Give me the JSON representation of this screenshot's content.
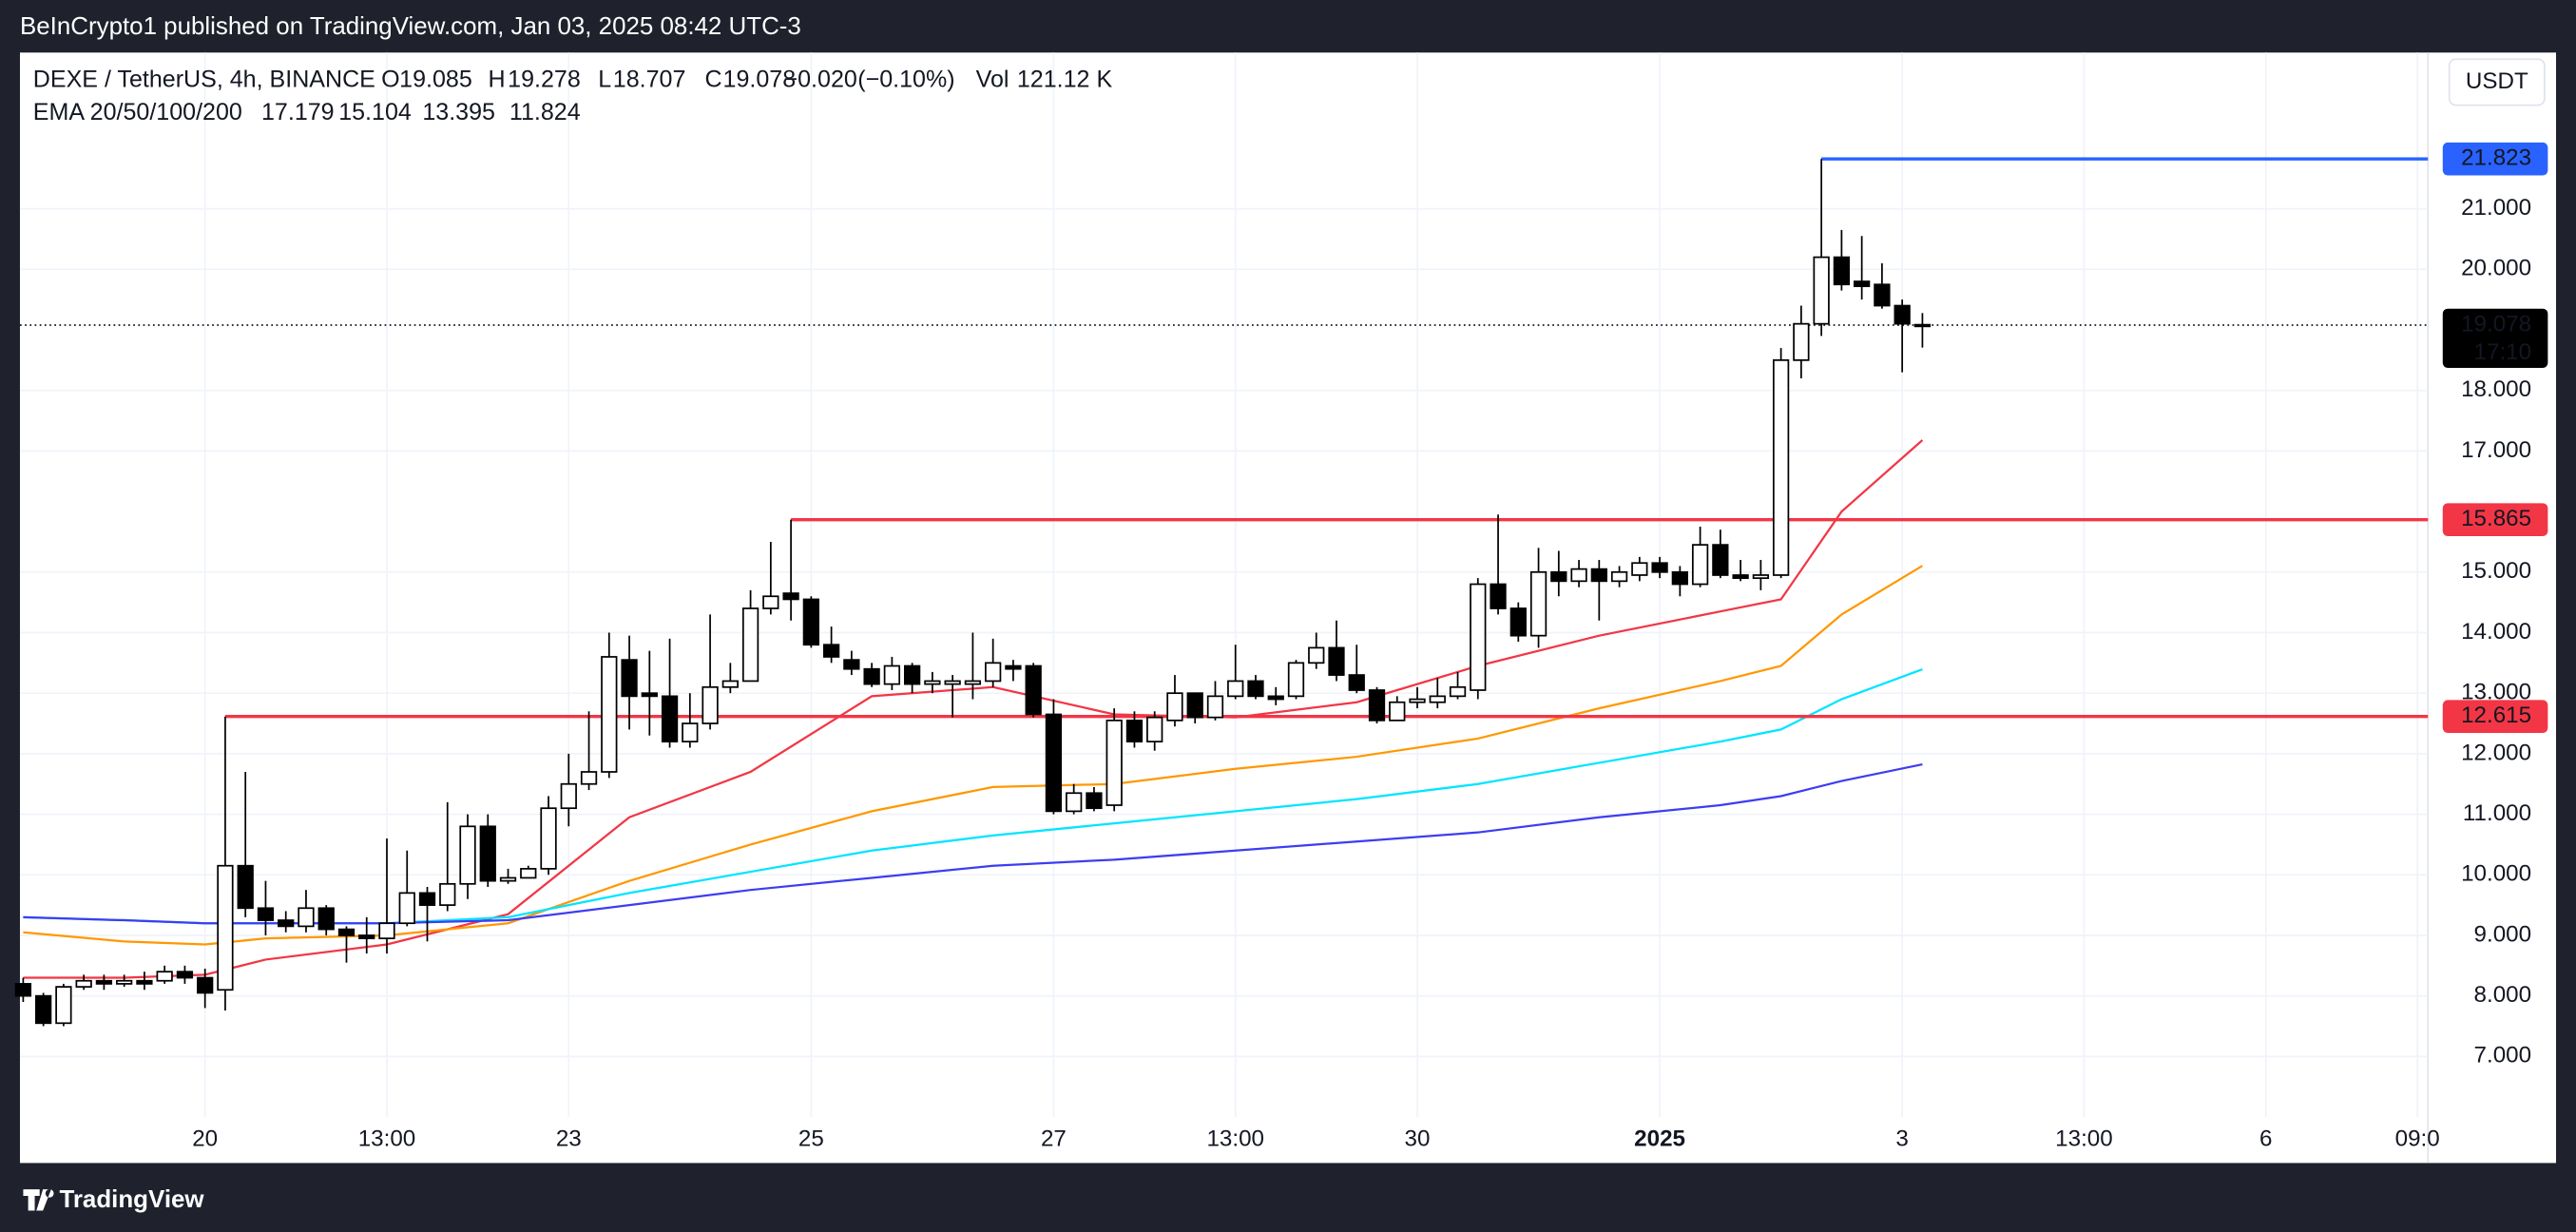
{
  "chart_data": {
    "type": "candlestick",
    "publisher": "BeInCrypto1 published on TradingView.com, Jan 03, 2025 08:42 UTC-3",
    "title": "DEXE / TetherUS, 4h, BINANCE",
    "ohlc_labels": {
      "open": "O",
      "high": "H",
      "low": "L",
      "close": "C",
      "volume": "Vol"
    },
    "change": {
      "value": -0.02,
      "label": "−0.020"
    },
    "change_pct": {
      "value": -0.1,
      "label": "(−0.10%)"
    },
    "volume": {
      "value": 121120,
      "label": "121.12 K"
    },
    "currency": "USDT",
    "countdown": "17:10",
    "brand": "TradingView",
    "up_color": "#ffffff",
    "down_color": "#000000",
    "wick_color": "#000000",
    "candles": {
      "open": [
        8.2,
        8.0,
        7.55,
        8.15,
        8.25,
        8.2,
        8.25,
        8.25,
        8.4,
        8.3,
        8.1,
        10.15,
        9.45,
        9.25,
        9.15,
        9.45,
        9.1,
        9.0,
        8.95,
        9.2,
        9.7,
        9.5,
        9.85,
        10.8,
        9.9,
        9.95,
        10.1,
        11.1,
        11.5,
        11.7,
        13.55,
        13.0,
        12.95,
        12.2,
        12.5,
        13.1,
        13.2,
        14.4,
        14.65,
        14.55,
        13.8,
        13.55,
        13.4,
        13.15,
        13.45,
        13.15,
        13.15,
        13.15,
        13.2,
        13.45,
        13.45,
        12.65,
        11.05,
        11.35,
        11.15,
        12.55,
        12.2,
        12.55,
        13.0,
        12.6,
        12.95,
        13.2,
        12.95,
        12.95,
        13.5,
        13.75,
        13.3,
        13.05,
        12.55,
        12.85,
        12.85,
        12.95,
        13.05,
        14.8,
        14.4,
        13.95,
        15.0,
        14.85,
        15.05,
        14.85,
        14.95,
        15.15,
        15.0,
        14.8,
        15.45,
        14.95,
        14.9,
        14.95,
        18.5,
        19.1,
        20.2,
        19.8,
        19.75,
        19.4,
        19.085
      ],
      "high": [
        8.3,
        8.05,
        8.2,
        8.35,
        8.35,
        8.35,
        8.4,
        8.5,
        8.5,
        8.45,
        12.615,
        11.7,
        9.9,
        9.4,
        9.75,
        9.5,
        9.15,
        9.3,
        10.6,
        10.4,
        9.8,
        11.2,
        11.0,
        11.0,
        10.1,
        10.15,
        11.3,
        12.0,
        12.7,
        14.0,
        13.95,
        13.7,
        13.9,
        13.0,
        14.3,
        13.5,
        14.7,
        15.5,
        15.865,
        14.6,
        14.1,
        13.7,
        13.5,
        13.6,
        13.5,
        13.35,
        13.3,
        14.0,
        13.9,
        13.55,
        13.5,
        12.9,
        11.5,
        11.45,
        12.75,
        12.7,
        12.7,
        13.3,
        13.0,
        13.2,
        13.8,
        13.3,
        13.1,
        13.55,
        14.0,
        14.2,
        13.8,
        13.1,
        12.95,
        13.1,
        13.25,
        13.35,
        14.9,
        15.95,
        14.5,
        15.4,
        15.35,
        15.2,
        15.2,
        15.1,
        15.25,
        15.25,
        15.1,
        15.75,
        15.7,
        15.2,
        15.2,
        18.7,
        19.4,
        21.823,
        20.65,
        20.55,
        20.1,
        19.5,
        19.278
      ],
      "low": [
        7.9,
        7.5,
        7.5,
        8.1,
        8.1,
        8.15,
        8.1,
        8.2,
        8.2,
        7.8,
        7.76,
        9.3,
        9.0,
        9.05,
        9.05,
        9.0,
        8.55,
        8.7,
        8.7,
        9.15,
        8.9,
        9.4,
        9.6,
        9.8,
        9.85,
        9.95,
        10.0,
        10.8,
        11.4,
        11.6,
        12.4,
        12.3,
        12.1,
        12.1,
        12.4,
        13.0,
        13.2,
        14.3,
        14.2,
        13.75,
        13.5,
        13.3,
        13.1,
        13.05,
        13.0,
        13.0,
        12.6,
        12.9,
        13.1,
        13.2,
        12.6,
        11.0,
        11.0,
        11.05,
        11.05,
        12.1,
        12.05,
        12.45,
        12.5,
        12.55,
        12.9,
        12.9,
        12.8,
        12.9,
        13.4,
        13.2,
        13.0,
        12.5,
        12.55,
        12.75,
        12.75,
        12.9,
        12.9,
        14.3,
        13.85,
        13.75,
        14.6,
        14.75,
        14.2,
        14.75,
        14.85,
        14.9,
        14.6,
        14.75,
        14.9,
        14.85,
        14.7,
        14.9,
        18.2,
        18.9,
        19.65,
        19.5,
        19.35,
        18.3,
        18.707
      ],
      "close": [
        8.0,
        7.55,
        8.15,
        8.25,
        8.2,
        8.25,
        8.2,
        8.4,
        8.3,
        8.05,
        10.15,
        9.45,
        9.25,
        9.15,
        9.45,
        9.1,
        9.0,
        8.95,
        9.2,
        9.7,
        9.5,
        9.85,
        10.8,
        9.9,
        9.95,
        10.1,
        11.1,
        11.5,
        11.7,
        13.6,
        12.95,
        12.95,
        12.2,
        12.5,
        13.1,
        13.2,
        14.4,
        14.6,
        14.55,
        13.8,
        13.6,
        13.4,
        13.15,
        13.45,
        13.15,
        13.2,
        13.2,
        13.2,
        13.5,
        13.4,
        12.65,
        11.05,
        11.35,
        11.1,
        12.55,
        12.2,
        12.6,
        13.0,
        12.6,
        12.95,
        13.2,
        12.95,
        12.9,
        13.5,
        13.75,
        13.3,
        13.05,
        12.55,
        12.85,
        12.9,
        12.95,
        13.1,
        14.8,
        14.4,
        13.95,
        15.0,
        14.85,
        15.05,
        14.85,
        15.0,
        15.15,
        15.0,
        14.8,
        15.45,
        14.95,
        14.9,
        14.95,
        18.5,
        19.1,
        20.2,
        19.75,
        19.72,
        19.4,
        19.1,
        19.078
      ]
    },
    "ema": {
      "label": "EMA 20/50/100/200",
      "x": [
        0,
        5,
        9,
        12,
        18,
        24,
        30,
        36,
        42,
        48,
        54,
        60,
        66,
        72,
        78,
        84,
        87,
        90,
        94
      ],
      "series": [
        {
          "color": "#f23645",
          "values": [
            8.3,
            8.3,
            8.35,
            8.6,
            8.85,
            9.35,
            10.95,
            11.7,
            12.95,
            13.1,
            12.65,
            12.6,
            12.85,
            13.45,
            13.95,
            14.35,
            14.55,
            16.0,
            17.179
          ]
        },
        {
          "color": "#ff9800",
          "values": [
            9.05,
            8.9,
            8.85,
            8.95,
            9.0,
            9.2,
            9.9,
            10.5,
            11.05,
            11.45,
            11.5,
            11.75,
            11.95,
            12.25,
            12.75,
            13.2,
            13.45,
            14.3,
            15.104
          ]
        },
        {
          "color": "#00e5ff",
          "values": [
            9.3,
            9.25,
            9.2,
            9.2,
            9.2,
            9.3,
            9.7,
            10.05,
            10.4,
            10.65,
            10.85,
            11.05,
            11.25,
            11.5,
            11.85,
            12.2,
            12.4,
            12.9,
            13.395
          ]
        },
        {
          "color": "#3d3df2",
          "values": [
            9.3,
            9.25,
            9.2,
            9.2,
            9.2,
            9.25,
            9.5,
            9.75,
            9.95,
            10.15,
            10.25,
            10.4,
            10.55,
            10.7,
            10.95,
            11.15,
            11.3,
            11.55,
            11.824
          ]
        }
      ]
    },
    "levels": [
      {
        "value": 21.823,
        "from": 89,
        "color": "#2962ff"
      },
      {
        "value": 15.865,
        "from": 38,
        "color": "#f23645"
      },
      {
        "value": 12.615,
        "from": 10,
        "color": "#f23645"
      }
    ],
    "xlim": [
      -0.16,
      119.02
    ],
    "ylim": [
      6.0,
      23.58
    ],
    "xticks": [
      {
        "value": 9,
        "label": "20"
      },
      {
        "value": 18,
        "label": "13:00"
      },
      {
        "value": 27,
        "label": "23"
      },
      {
        "value": 39,
        "label": "25"
      },
      {
        "value": 51,
        "label": "27"
      },
      {
        "value": 60,
        "label": "13:00"
      },
      {
        "value": 69,
        "label": "30"
      },
      {
        "value": 81,
        "label": "2025"
      },
      {
        "value": 93,
        "label": "3"
      },
      {
        "value": 102,
        "label": "13:00"
      },
      {
        "value": 111,
        "label": "6"
      },
      {
        "value": 118.5,
        "label": "09:0"
      }
    ],
    "yticks": [
      {
        "value": 7,
        "label": "7.000"
      },
      {
        "value": 8,
        "label": "8.000"
      },
      {
        "value": 9,
        "label": "9.000"
      },
      {
        "value": 10,
        "label": "10.000"
      },
      {
        "value": 11,
        "label": "11.000"
      },
      {
        "value": 12,
        "label": "12.000"
      },
      {
        "value": 13,
        "label": "13.000"
      },
      {
        "value": 14,
        "label": "14.000"
      },
      {
        "value": 15,
        "label": "15.000"
      },
      {
        "value": 17,
        "label": "17.000"
      },
      {
        "value": 18,
        "label": "18.000"
      },
      {
        "value": 20,
        "label": "20.000"
      },
      {
        "value": 21,
        "label": "21.000"
      }
    ],
    "grid": true
  }
}
